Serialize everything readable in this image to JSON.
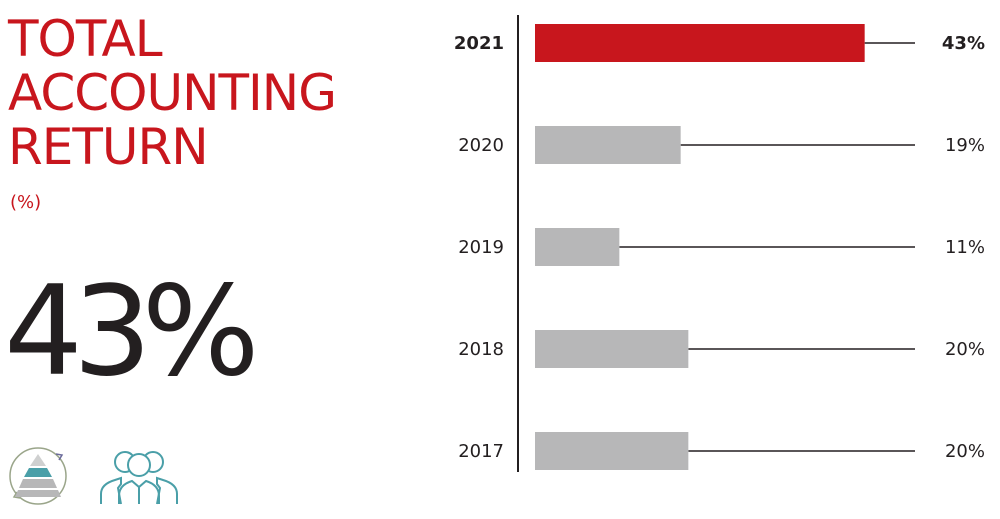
{
  "title_lines": [
    "TOTAL",
    "ACCOUNTING",
    "RETURN"
  ],
  "unit": "(%)",
  "headline_value": "43%",
  "icons": [
    "pyramid-cycle-icon",
    "people-group-icon"
  ],
  "colors": {
    "accent": "#c8161d",
    "bar_grey": "#b7b7b8",
    "line": "#231f20",
    "icon_teal": "#4a9fa8"
  },
  "chart_data": {
    "type": "bar",
    "orientation": "horizontal",
    "categories": [
      "2021",
      "2020",
      "2019",
      "2018",
      "2017"
    ],
    "values": [
      43,
      19,
      11,
      20,
      20
    ],
    "value_labels": [
      "43%",
      "19%",
      "11%",
      "20%",
      "20%"
    ],
    "highlight": "2021",
    "xlim": [
      0,
      48
    ],
    "grid": false
  }
}
